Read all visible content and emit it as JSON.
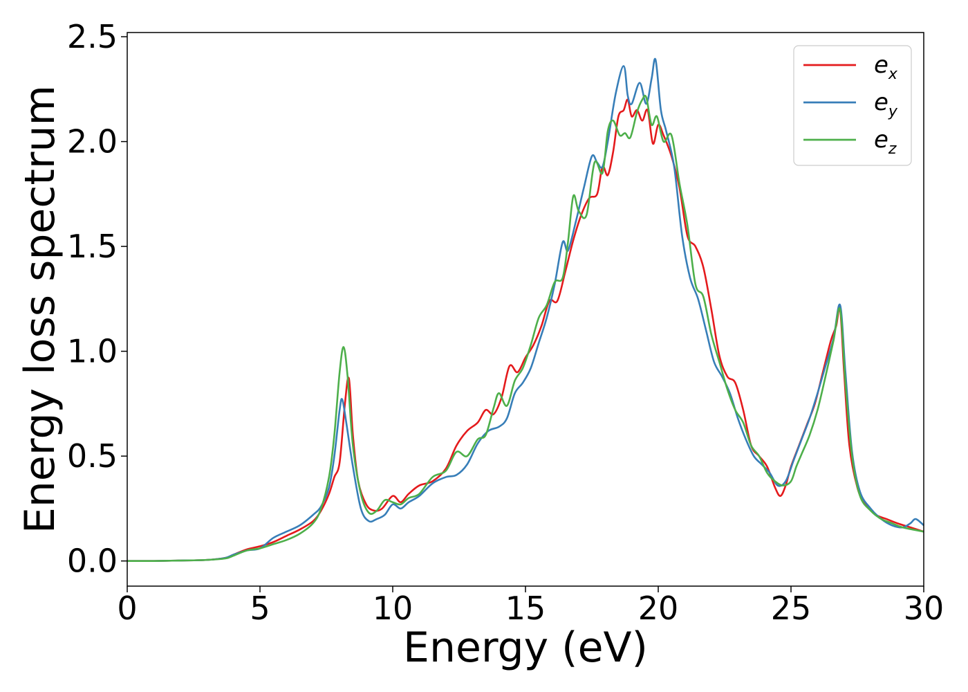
{
  "chart_data": {
    "type": "line",
    "xlabel": "Energy (eV)",
    "ylabel": "Energy loss spectrum",
    "xlim": [
      0,
      30
    ],
    "ylim": [
      -0.12,
      2.52
    ],
    "xticks": [
      0,
      5,
      10,
      15,
      20,
      25,
      30
    ],
    "xtick_labels": [
      "0",
      "5",
      "10",
      "15",
      "20",
      "25",
      "30"
    ],
    "yticks": [
      0.0,
      0.5,
      1.0,
      1.5,
      2.0,
      2.5
    ],
    "ytick_labels": [
      "0.0",
      "0.5",
      "1.0",
      "1.5",
      "2.0",
      "2.5"
    ],
    "grid": false,
    "legend_position": "top-right",
    "series": [
      {
        "name": "e_x",
        "label_base": "e",
        "label_sub": "x",
        "color": "#e41a1c",
        "points": [
          [
            0,
            0
          ],
          [
            1,
            0
          ],
          [
            2,
            0.002
          ],
          [
            3,
            0.005
          ],
          [
            3.7,
            0.015
          ],
          [
            4,
            0.03
          ],
          [
            4.5,
            0.055
          ],
          [
            5,
            0.07
          ],
          [
            5.5,
            0.09
          ],
          [
            6,
            0.12
          ],
          [
            6.5,
            0.15
          ],
          [
            7,
            0.19
          ],
          [
            7.3,
            0.24
          ],
          [
            7.6,
            0.32
          ],
          [
            7.8,
            0.4
          ],
          [
            8.0,
            0.47
          ],
          [
            8.2,
            0.75
          ],
          [
            8.35,
            0.87
          ],
          [
            8.5,
            0.6
          ],
          [
            8.7,
            0.38
          ],
          [
            9.0,
            0.27
          ],
          [
            9.3,
            0.24
          ],
          [
            9.6,
            0.25
          ],
          [
            10.0,
            0.31
          ],
          [
            10.3,
            0.28
          ],
          [
            10.6,
            0.32
          ],
          [
            11.0,
            0.36
          ],
          [
            11.5,
            0.38
          ],
          [
            12.0,
            0.44
          ],
          [
            12.4,
            0.55
          ],
          [
            12.8,
            0.62
          ],
          [
            13.2,
            0.66
          ],
          [
            13.5,
            0.72
          ],
          [
            13.8,
            0.7
          ],
          [
            14.1,
            0.78
          ],
          [
            14.4,
            0.93
          ],
          [
            14.7,
            0.9
          ],
          [
            15.0,
            0.97
          ],
          [
            15.3,
            1.03
          ],
          [
            15.6,
            1.12
          ],
          [
            15.9,
            1.24
          ],
          [
            16.2,
            1.24
          ],
          [
            16.5,
            1.38
          ],
          [
            16.8,
            1.53
          ],
          [
            17.1,
            1.65
          ],
          [
            17.4,
            1.73
          ],
          [
            17.7,
            1.75
          ],
          [
            17.9,
            1.88
          ],
          [
            18.1,
            1.84
          ],
          [
            18.3,
            1.95
          ],
          [
            18.5,
            2.12
          ],
          [
            18.7,
            2.15
          ],
          [
            18.85,
            2.2
          ],
          [
            19.0,
            2.12
          ],
          [
            19.2,
            2.15
          ],
          [
            19.4,
            2.1
          ],
          [
            19.6,
            2.15
          ],
          [
            19.8,
            1.99
          ],
          [
            20.0,
            2.08
          ],
          [
            20.2,
            2.03
          ],
          [
            20.5,
            1.93
          ],
          [
            20.8,
            1.78
          ],
          [
            21.1,
            1.55
          ],
          [
            21.4,
            1.5
          ],
          [
            21.7,
            1.4
          ],
          [
            22.0,
            1.2
          ],
          [
            22.3,
            0.98
          ],
          [
            22.6,
            0.88
          ],
          [
            22.9,
            0.85
          ],
          [
            23.2,
            0.72
          ],
          [
            23.5,
            0.55
          ],
          [
            23.8,
            0.5
          ],
          [
            24.1,
            0.45
          ],
          [
            24.4,
            0.35
          ],
          [
            24.6,
            0.31
          ],
          [
            24.8,
            0.36
          ],
          [
            25.0,
            0.45
          ],
          [
            25.3,
            0.55
          ],
          [
            25.6,
            0.65
          ],
          [
            25.9,
            0.75
          ],
          [
            26.2,
            0.9
          ],
          [
            26.5,
            1.05
          ],
          [
            26.7,
            1.12
          ],
          [
            26.85,
            1.2
          ],
          [
            27.0,
            0.9
          ],
          [
            27.2,
            0.55
          ],
          [
            27.5,
            0.35
          ],
          [
            27.8,
            0.27
          ],
          [
            28.2,
            0.22
          ],
          [
            28.6,
            0.2
          ],
          [
            29.0,
            0.18
          ],
          [
            29.5,
            0.16
          ],
          [
            30,
            0.14
          ]
        ]
      },
      {
        "name": "e_y",
        "label_base": "e",
        "label_sub": "y",
        "color": "#377eb8",
        "points": [
          [
            0,
            0
          ],
          [
            1,
            0
          ],
          [
            2,
            0.002
          ],
          [
            3,
            0.005
          ],
          [
            3.7,
            0.015
          ],
          [
            4,
            0.03
          ],
          [
            4.5,
            0.05
          ],
          [
            5,
            0.06
          ],
          [
            5.5,
            0.11
          ],
          [
            6,
            0.14
          ],
          [
            6.5,
            0.17
          ],
          [
            7,
            0.22
          ],
          [
            7.3,
            0.26
          ],
          [
            7.6,
            0.35
          ],
          [
            7.8,
            0.5
          ],
          [
            8.0,
            0.72
          ],
          [
            8.1,
            0.77
          ],
          [
            8.25,
            0.66
          ],
          [
            8.5,
            0.45
          ],
          [
            8.8,
            0.25
          ],
          [
            9.1,
            0.19
          ],
          [
            9.4,
            0.2
          ],
          [
            9.7,
            0.22
          ],
          [
            10.0,
            0.27
          ],
          [
            10.3,
            0.25
          ],
          [
            10.6,
            0.28
          ],
          [
            11.0,
            0.31
          ],
          [
            11.5,
            0.37
          ],
          [
            12.0,
            0.4
          ],
          [
            12.4,
            0.41
          ],
          [
            12.8,
            0.46
          ],
          [
            13.2,
            0.56
          ],
          [
            13.6,
            0.62
          ],
          [
            14.0,
            0.64
          ],
          [
            14.3,
            0.68
          ],
          [
            14.6,
            0.8
          ],
          [
            14.9,
            0.85
          ],
          [
            15.2,
            0.92
          ],
          [
            15.5,
            1.04
          ],
          [
            15.8,
            1.16
          ],
          [
            16.1,
            1.32
          ],
          [
            16.4,
            1.52
          ],
          [
            16.6,
            1.48
          ],
          [
            16.9,
            1.62
          ],
          [
            17.2,
            1.78
          ],
          [
            17.5,
            1.93
          ],
          [
            17.7,
            1.9
          ],
          [
            17.9,
            1.88
          ],
          [
            18.1,
            2.0
          ],
          [
            18.4,
            2.23
          ],
          [
            18.7,
            2.36
          ],
          [
            18.85,
            2.22
          ],
          [
            19.0,
            2.18
          ],
          [
            19.3,
            2.28
          ],
          [
            19.55,
            2.18
          ],
          [
            19.75,
            2.3
          ],
          [
            19.9,
            2.39
          ],
          [
            20.1,
            2.15
          ],
          [
            20.3,
            2.05
          ],
          [
            20.6,
            1.88
          ],
          [
            20.9,
            1.55
          ],
          [
            21.2,
            1.35
          ],
          [
            21.5,
            1.25
          ],
          [
            21.8,
            1.1
          ],
          [
            22.1,
            0.95
          ],
          [
            22.4,
            0.88
          ],
          [
            22.7,
            0.8
          ],
          [
            23.0,
            0.68
          ],
          [
            23.3,
            0.58
          ],
          [
            23.6,
            0.5
          ],
          [
            23.9,
            0.46
          ],
          [
            24.2,
            0.42
          ],
          [
            24.5,
            0.36
          ],
          [
            24.8,
            0.38
          ],
          [
            25.1,
            0.48
          ],
          [
            25.4,
            0.58
          ],
          [
            25.7,
            0.68
          ],
          [
            26.0,
            0.8
          ],
          [
            26.3,
            0.93
          ],
          [
            26.6,
            1.06
          ],
          [
            26.85,
            1.22
          ],
          [
            27.05,
            0.9
          ],
          [
            27.3,
            0.52
          ],
          [
            27.6,
            0.33
          ],
          [
            28.0,
            0.25
          ],
          [
            28.4,
            0.2
          ],
          [
            28.8,
            0.17
          ],
          [
            29.2,
            0.16
          ],
          [
            29.5,
            0.18
          ],
          [
            29.7,
            0.2
          ],
          [
            30,
            0.17
          ]
        ]
      },
      {
        "name": "e_z",
        "label_base": "e",
        "label_sub": "z",
        "color": "#4daf4a",
        "points": [
          [
            0,
            0
          ],
          [
            1,
            0
          ],
          [
            2,
            0.002
          ],
          [
            3,
            0.005
          ],
          [
            3.7,
            0.012
          ],
          [
            4,
            0.025
          ],
          [
            4.5,
            0.05
          ],
          [
            5,
            0.06
          ],
          [
            5.5,
            0.08
          ],
          [
            6,
            0.1
          ],
          [
            6.5,
            0.13
          ],
          [
            7,
            0.18
          ],
          [
            7.3,
            0.25
          ],
          [
            7.6,
            0.4
          ],
          [
            7.8,
            0.6
          ],
          [
            8.0,
            0.9
          ],
          [
            8.15,
            1.02
          ],
          [
            8.3,
            0.88
          ],
          [
            8.5,
            0.55
          ],
          [
            8.8,
            0.32
          ],
          [
            9.1,
            0.23
          ],
          [
            9.4,
            0.24
          ],
          [
            9.7,
            0.29
          ],
          [
            10.0,
            0.28
          ],
          [
            10.3,
            0.27
          ],
          [
            10.6,
            0.3
          ],
          [
            11.0,
            0.32
          ],
          [
            11.5,
            0.4
          ],
          [
            12.0,
            0.43
          ],
          [
            12.4,
            0.52
          ],
          [
            12.8,
            0.5
          ],
          [
            13.2,
            0.58
          ],
          [
            13.5,
            0.6
          ],
          [
            13.8,
            0.73
          ],
          [
            14.0,
            0.8
          ],
          [
            14.3,
            0.74
          ],
          [
            14.6,
            0.86
          ],
          [
            14.9,
            0.92
          ],
          [
            15.2,
            1.03
          ],
          [
            15.5,
            1.16
          ],
          [
            15.8,
            1.22
          ],
          [
            16.1,
            1.33
          ],
          [
            16.4,
            1.35
          ],
          [
            16.6,
            1.52
          ],
          [
            16.8,
            1.74
          ],
          [
            17.0,
            1.67
          ],
          [
            17.3,
            1.65
          ],
          [
            17.6,
            1.9
          ],
          [
            17.9,
            1.85
          ],
          [
            18.1,
            2.05
          ],
          [
            18.3,
            2.1
          ],
          [
            18.55,
            2.03
          ],
          [
            18.75,
            2.04
          ],
          [
            18.95,
            2.02
          ],
          [
            19.2,
            2.14
          ],
          [
            19.4,
            2.2
          ],
          [
            19.55,
            2.21
          ],
          [
            19.75,
            2.08
          ],
          [
            19.95,
            2.12
          ],
          [
            20.2,
            2.0
          ],
          [
            20.5,
            2.03
          ],
          [
            20.8,
            1.8
          ],
          [
            21.1,
            1.6
          ],
          [
            21.4,
            1.32
          ],
          [
            21.7,
            1.26
          ],
          [
            22.0,
            1.08
          ],
          [
            22.3,
            0.95
          ],
          [
            22.6,
            0.82
          ],
          [
            22.9,
            0.72
          ],
          [
            23.2,
            0.66
          ],
          [
            23.5,
            0.55
          ],
          [
            23.8,
            0.5
          ],
          [
            24.1,
            0.42
          ],
          [
            24.4,
            0.38
          ],
          [
            24.7,
            0.36
          ],
          [
            25.0,
            0.38
          ],
          [
            25.2,
            0.45
          ],
          [
            25.4,
            0.51
          ],
          [
            25.7,
            0.6
          ],
          [
            26.0,
            0.72
          ],
          [
            26.3,
            0.88
          ],
          [
            26.6,
            1.05
          ],
          [
            26.85,
            1.2
          ],
          [
            27.05,
            0.85
          ],
          [
            27.3,
            0.5
          ],
          [
            27.6,
            0.31
          ],
          [
            28.0,
            0.24
          ],
          [
            28.4,
            0.2
          ],
          [
            28.8,
            0.18
          ],
          [
            29.2,
            0.16
          ],
          [
            30,
            0.14
          ]
        ]
      }
    ]
  }
}
